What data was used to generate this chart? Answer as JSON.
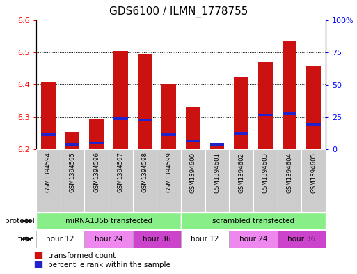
{
  "title": "GDS6100 / ILMN_1778755",
  "samples": [
    "GSM1394594",
    "GSM1394595",
    "GSM1394596",
    "GSM1394597",
    "GSM1394598",
    "GSM1394599",
    "GSM1394600",
    "GSM1394601",
    "GSM1394602",
    "GSM1394603",
    "GSM1394604",
    "GSM1394605"
  ],
  "bar_base": 6.2,
  "transformed_counts": [
    6.41,
    6.255,
    6.295,
    6.505,
    6.495,
    6.4,
    6.33,
    6.215,
    6.425,
    6.47,
    6.535,
    6.46
  ],
  "percentile_values": [
    6.245,
    6.215,
    6.22,
    6.295,
    6.29,
    6.245,
    6.225,
    6.215,
    6.25,
    6.305,
    6.31,
    6.275
  ],
  "ylim": [
    6.2,
    6.6
  ],
  "ytick_vals": [
    6.2,
    6.3,
    6.4,
    6.5,
    6.6
  ],
  "right_ytick_vals": [
    0,
    25,
    50,
    75,
    100
  ],
  "bar_color": "#cc1111",
  "percentile_color": "#2222cc",
  "bar_width": 0.6,
  "protocol_labels": [
    "miRNA135b transfected",
    "scrambled transfected"
  ],
  "protocol_color": "#88ee88",
  "time_labels": [
    "hour 12",
    "hour 24",
    "hour 36",
    "hour 12",
    "hour 24",
    "hour 36"
  ],
  "time_colors": [
    "#ffffff",
    "#ee88ee",
    "#cc44cc",
    "#ffffff",
    "#ee88ee",
    "#cc44cc"
  ],
  "sample_bg_color": "#cccccc",
  "title_fontsize": 11,
  "tick_fontsize": 8,
  "label_fontsize": 8
}
